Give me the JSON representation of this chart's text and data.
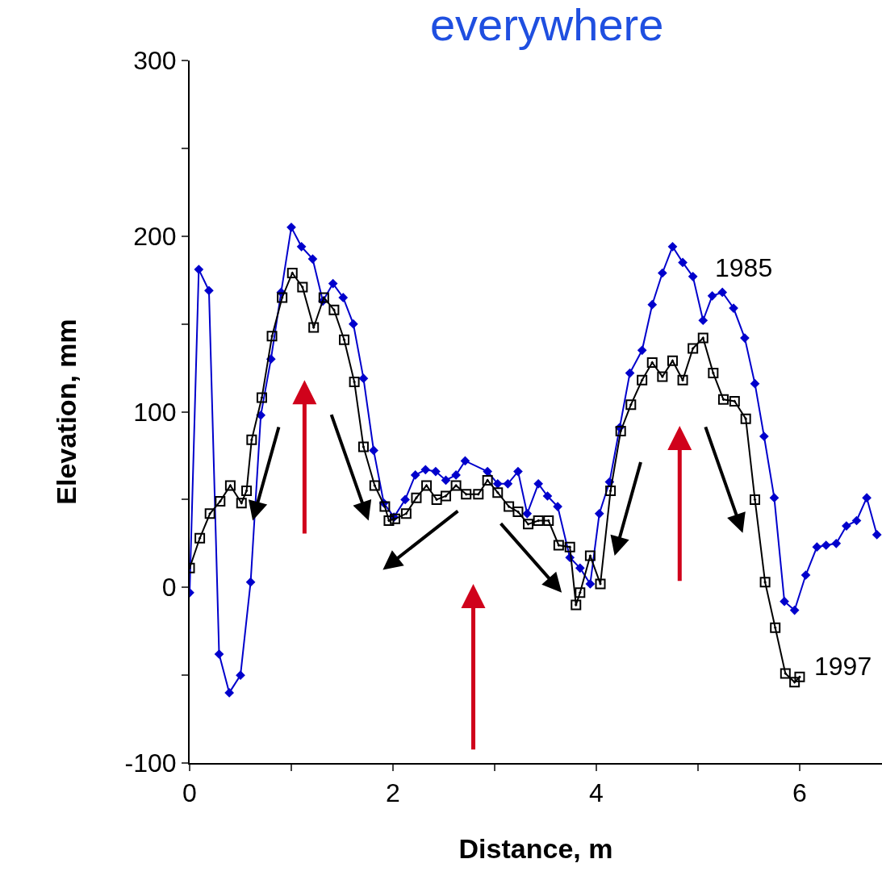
{
  "chart_data": {
    "type": "line",
    "title": "everywhere",
    "xlabel": "Distance, m",
    "ylabel": "Elevation, mm",
    "series": [
      {
        "name": "1985",
        "color": "#0000cc",
        "marker": "diamond",
        "x": [
          0,
          0.09,
          0.19,
          0.29,
          0.39,
          0.5,
          0.6,
          0.7,
          0.8,
          0.9,
          1.0,
          1.1,
          1.21,
          1.31,
          1.41,
          1.51,
          1.61,
          1.71,
          1.81,
          1.91,
          2.01,
          2.12,
          2.22,
          2.32,
          2.42,
          2.52,
          2.62,
          2.71,
          2.93,
          3.03,
          3.13,
          3.23,
          3.32,
          3.43,
          3.52,
          3.62,
          3.74,
          3.84,
          3.94,
          4.03,
          4.13,
          4.23,
          4.33,
          4.45,
          4.55,
          4.65,
          4.75,
          4.85,
          4.95,
          5.05,
          5.14,
          5.24,
          5.35,
          5.46,
          5.56,
          5.65,
          5.75,
          5.85,
          5.95,
          6.06,
          6.17,
          6.26,
          6.36,
          6.46,
          6.56,
          6.66,
          6.76
        ],
        "values": [
          -3,
          181,
          169,
          -38,
          -60,
          -50,
          3,
          98,
          130,
          168,
          205,
          194,
          187,
          163,
          173,
          165,
          150,
          119,
          78,
          48,
          40,
          50,
          64,
          67,
          66,
          61,
          64,
          72,
          66,
          59,
          59,
          66,
          42,
          59,
          52,
          46,
          17,
          11,
          2,
          42,
          60,
          91,
          122,
          135,
          161,
          179,
          194,
          185,
          177,
          152,
          166,
          168,
          159,
          142,
          116,
          86,
          51,
          -8,
          -13,
          7,
          23,
          24,
          25,
          35,
          38,
          51,
          30
        ]
      },
      {
        "name": "1997",
        "color": "#000000",
        "marker": "square",
        "x": [
          0,
          0.1,
          0.2,
          0.3,
          0.4,
          0.51,
          0.56,
          0.61,
          0.71,
          0.81,
          0.91,
          1.01,
          1.11,
          1.22,
          1.32,
          1.42,
          1.52,
          1.62,
          1.71,
          1.82,
          1.92,
          1.96,
          2.02,
          2.13,
          2.23,
          2.33,
          2.43,
          2.52,
          2.62,
          2.72,
          2.84,
          2.93,
          3.03,
          3.14,
          3.23,
          3.33,
          3.43,
          3.53,
          3.63,
          3.74,
          3.8,
          3.84,
          3.94,
          4.04,
          4.14,
          4.24,
          4.34,
          4.45,
          4.55,
          4.65,
          4.75,
          4.85,
          4.95,
          5.05,
          5.15,
          5.25,
          5.36,
          5.47,
          5.56,
          5.66,
          5.76,
          5.86,
          5.95,
          6.0
        ],
        "values": [
          11,
          28,
          42,
          49,
          58,
          48,
          55,
          84,
          108,
          143,
          165,
          179,
          171,
          148,
          165,
          158,
          141,
          117,
          80,
          58,
          46,
          38,
          39,
          42,
          51,
          58,
          50,
          52,
          58,
          53,
          53,
          61,
          54,
          46,
          43,
          36,
          38,
          38,
          24,
          23,
          -10,
          -3,
          18,
          2,
          55,
          89,
          104,
          118,
          128,
          120,
          129,
          118,
          136,
          142,
          122,
          107,
          106,
          96,
          50,
          3,
          -23,
          -49,
          -54,
          -51
        ]
      }
    ],
    "xlim": [
      0,
      6.81
    ],
    "xticks": [
      0,
      {
        "value": 1,
        "label": null
      },
      2,
      {
        "value": 3,
        "label": null
      },
      4,
      {
        "value": 5,
        "label": null
      },
      6
    ],
    "ylim": [
      -100,
      300
    ],
    "yticks": [
      -100,
      {
        "value": -50,
        "label": null
      },
      0,
      {
        "value": 50,
        "label": null
      },
      100,
      {
        "value": 150,
        "label": null
      },
      200,
      {
        "value": 250,
        "label": null
      },
      300
    ],
    "legend": false,
    "line_style": "solid"
  }
}
